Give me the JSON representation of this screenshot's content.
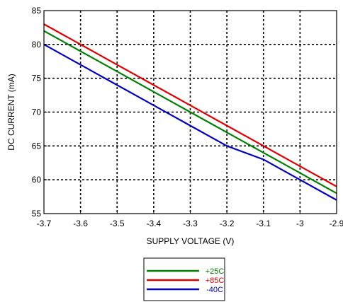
{
  "chart_data": {
    "type": "line",
    "title": "",
    "xlabel": "SUPPLY VOLTAGE (V)",
    "ylabel": "DC CURRENT (mA)",
    "xlim": [
      -3.7,
      -2.9
    ],
    "ylim": [
      55,
      85
    ],
    "x_ticks": [
      -3.7,
      -3.6,
      -3.5,
      -3.4,
      -3.3,
      -3.2,
      -3.1,
      -3.0,
      -2.9
    ],
    "x_tick_labels": [
      "-3.7",
      "-3.6",
      "-3.5",
      "-3.4",
      "-3.3",
      "-3.2",
      "-3.1",
      "-3",
      "-2.9"
    ],
    "y_ticks": [
      55,
      60,
      65,
      70,
      75,
      80,
      85
    ],
    "y_tick_labels": [
      "55",
      "60",
      "65",
      "70",
      "75",
      "80",
      "85"
    ],
    "grid": true,
    "grid_style": "dotted",
    "legend_position": "bottom-center",
    "series": [
      {
        "name": "+25C",
        "color": "#008000",
        "x": [
          -3.7,
          -3.6,
          -3.5,
          -3.4,
          -3.3,
          -3.2,
          -3.1,
          -3.0,
          -2.9
        ],
        "y": [
          82.0,
          79.0,
          76.0,
          73.0,
          70.0,
          67.0,
          64.0,
          61.0,
          58.0
        ]
      },
      {
        "name": "+85C",
        "color": "#e00000",
        "x": [
          -3.7,
          -3.6,
          -3.5,
          -3.4,
          -3.3,
          -3.2,
          -3.1,
          -3.0,
          -2.9
        ],
        "y": [
          83.0,
          80.0,
          77.0,
          74.0,
          71.0,
          68.0,
          65.0,
          62.0,
          59.0
        ]
      },
      {
        "name": "-40C",
        "color": "#0000c0",
        "x": [
          -3.7,
          -3.6,
          -3.5,
          -3.4,
          -3.3,
          -3.2,
          -3.1,
          -3.0,
          -2.9
        ],
        "y": [
          80.0,
          77.0,
          74.0,
          71.0,
          68.0,
          65.0,
          63.0,
          60.0,
          57.0
        ]
      }
    ]
  }
}
